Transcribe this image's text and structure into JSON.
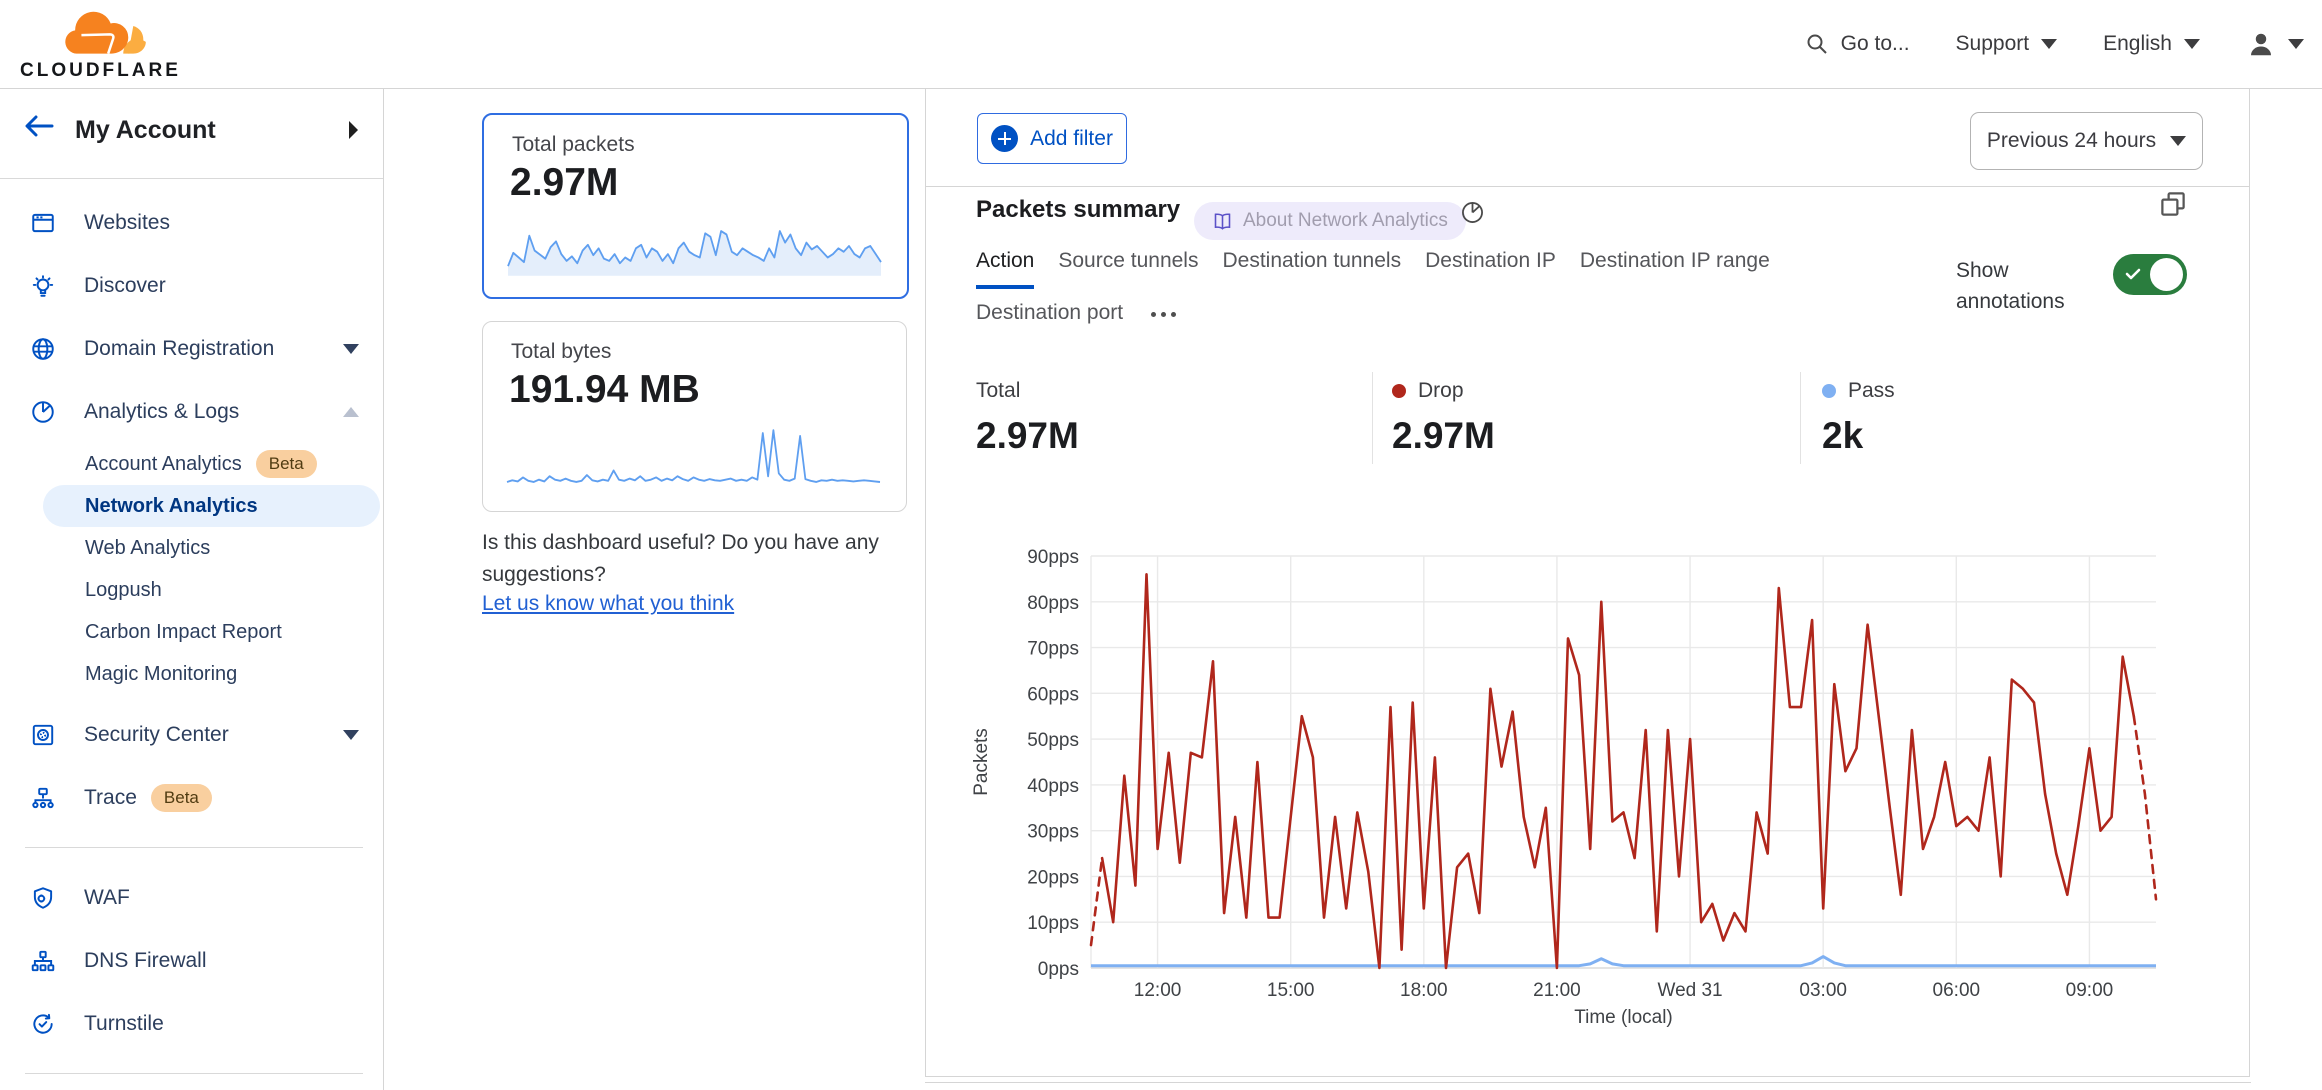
{
  "nav": {
    "brand": "CLOUDFLARE",
    "goto_label": "Go to...",
    "support_label": "Support",
    "language_label": "English"
  },
  "sidebar": {
    "account_label": "My Account",
    "items": [
      {
        "label": "Websites"
      },
      {
        "label": "Discover"
      },
      {
        "label": "Domain Registration"
      },
      {
        "label": "Analytics & Logs"
      }
    ],
    "analytics_children": [
      {
        "label": "Account Analytics",
        "badge": "Beta"
      },
      {
        "label": "Network Analytics",
        "selected": true
      },
      {
        "label": "Web Analytics"
      },
      {
        "label": "Logpush"
      },
      {
        "label": "Carbon Impact Report"
      },
      {
        "label": "Magic Monitoring"
      }
    ],
    "items2": [
      {
        "label": "Security Center"
      },
      {
        "label": "Trace",
        "badge": "Beta"
      }
    ],
    "items3": [
      {
        "label": "WAF"
      },
      {
        "label": "DNS Firewall"
      },
      {
        "label": "Turnstile"
      }
    ]
  },
  "summary_cards": {
    "packets": {
      "title": "Total packets",
      "value": "2.97M"
    },
    "bytes": {
      "title": "Total bytes",
      "value": "191.94 MB"
    }
  },
  "feedback": {
    "question_line1": "Is this dashboard useful? Do you have any",
    "question_line2": "suggestions?",
    "link": "Let us know what you think"
  },
  "main": {
    "add_filter_label": "Add filter",
    "time_range_label": "Previous 24 hours",
    "panel": {
      "title": "Packets summary",
      "about_badge": "About Network Analytics",
      "tabs": [
        "Action",
        "Source tunnels",
        "Destination tunnels",
        "Destination IP",
        "Destination IP range",
        "Destination port"
      ],
      "active_tab": "Action",
      "show_annotations_line1": "Show",
      "show_annotations_line2": "annotations",
      "show_annotations_on": true,
      "stats": [
        {
          "label": "Total",
          "value": "2.97M",
          "dot": null
        },
        {
          "label": "Drop",
          "value": "2.97M",
          "dot": "#b0271c"
        },
        {
          "label": "Pass",
          "value": "2k",
          "dot": "#7fb0f2"
        }
      ]
    }
  },
  "colors": {
    "accent_blue": "#0051c3",
    "selected_pill_bg": "#e7f1fd",
    "selected_text": "#003681",
    "beta_bg": "#f9cf9f",
    "toggle_green": "#2a7d3e",
    "drop_red": "#b0271c",
    "pass_blue": "#7fb0f2",
    "spark_blue": "#5f9ff0",
    "grid_gray": "#e8e8e8"
  },
  "chart_data": [
    {
      "type": "line",
      "title": "Packets summary",
      "xlabel": "Time (local)",
      "ylabel": "Packets",
      "ylim": [
        0,
        90
      ],
      "grid": true,
      "y_tick_suffix": "pps",
      "y_ticks": [
        0,
        10,
        20,
        30,
        40,
        50,
        60,
        70,
        80,
        90
      ],
      "x_ticks": [
        {
          "pos": 0.0625,
          "label": "12:00"
        },
        {
          "pos": 0.1875,
          "label": "15:00"
        },
        {
          "pos": 0.3125,
          "label": "18:00"
        },
        {
          "pos": 0.4375,
          "label": "21:00"
        },
        {
          "pos": 0.5625,
          "label": "Wed 31"
        },
        {
          "pos": 0.6875,
          "label": "03:00"
        },
        {
          "pos": 0.8125,
          "label": "06:00"
        },
        {
          "pos": 0.9375,
          "label": "09:00"
        }
      ],
      "series": [
        {
          "name": "Drop",
          "color": "#b0271c",
          "dashed_head_segments": 1,
          "dashed_tail_segments": 2,
          "values": [
            5,
            24,
            10,
            42,
            18,
            86,
            26,
            47,
            23,
            47,
            46,
            67,
            12,
            33,
            11,
            45,
            11,
            11,
            33,
            55,
            46,
            11,
            33,
            13,
            34,
            21,
            0,
            57,
            4,
            58,
            13,
            46,
            0,
            22,
            25,
            12,
            61,
            44,
            56,
            33,
            22,
            35,
            0,
            72,
            64,
            26,
            80,
            32,
            34,
            24,
            52,
            8,
            52,
            20,
            50,
            10,
            14,
            6,
            12,
            8,
            34,
            25,
            83,
            57,
            57,
            76,
            13,
            62,
            43,
            48,
            75,
            55,
            35,
            16,
            52,
            26,
            33,
            45,
            31,
            33,
            30,
            46,
            20,
            63,
            61,
            58,
            38,
            25,
            16,
            31,
            48,
            30,
            33,
            68,
            55,
            38,
            15
          ]
        },
        {
          "name": "Pass",
          "color": "#7fb0f2",
          "baseline": 0.5,
          "bumps": [
            {
              "i": 46,
              "v": 2
            },
            {
              "i": 66,
              "v": 2.5
            }
          ]
        }
      ],
      "legend_position": "stats row above chart"
    },
    {
      "type": "line",
      "title": "Total packets sparkline",
      "ylim": [
        0,
        100
      ],
      "values": [
        15,
        38,
        30,
        22,
        68,
        42,
        35,
        28,
        48,
        58,
        36,
        24,
        32,
        20,
        42,
        52,
        34,
        46,
        28,
        24,
        36,
        20,
        30,
        24,
        46,
        52,
        30,
        46,
        40,
        24,
        36,
        20,
        46,
        56,
        40,
        34,
        30,
        72,
        66,
        34,
        76,
        70,
        40,
        34,
        46,
        40,
        34,
        30,
        24,
        46,
        30,
        76,
        56,
        70,
        46,
        34,
        56,
        44,
        50,
        40,
        30,
        36,
        46,
        40,
        50,
        36,
        30,
        46,
        50,
        36,
        22
      ]
    },
    {
      "type": "line",
      "title": "Total bytes sparkline",
      "ylim": [
        0,
        100
      ],
      "values": [
        10,
        13,
        11,
        18,
        12,
        10,
        14,
        11,
        20,
        14,
        12,
        16,
        12,
        10,
        12,
        22,
        13,
        11,
        14,
        12,
        30,
        14,
        12,
        16,
        13,
        20,
        12,
        14,
        18,
        12,
        16,
        13,
        20,
        15,
        12,
        18,
        14,
        12,
        15,
        13,
        12,
        14,
        16,
        12,
        14,
        12,
        18,
        14,
        95,
        20,
        100,
        25,
        14,
        12,
        16,
        90,
        15,
        12,
        10,
        13,
        12,
        14,
        12,
        13,
        12,
        11,
        12,
        13,
        12,
        11,
        10
      ]
    }
  ]
}
